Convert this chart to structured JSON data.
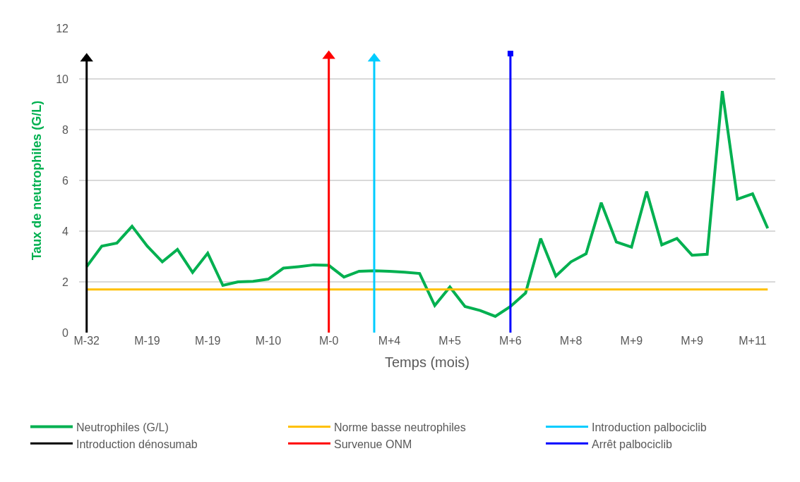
{
  "chart_data": {
    "type": "line",
    "xlabel": "Temps (mois)",
    "ylabel": "Taux de neutrophiles (G/L)",
    "categories": [
      "M-32",
      null,
      null,
      null,
      "M-19",
      null,
      null,
      null,
      "M-19",
      null,
      null,
      null,
      "M-10",
      null,
      null,
      null,
      "M-0",
      null,
      null,
      null,
      "M+4",
      null,
      null,
      null,
      "M+5",
      null,
      null,
      null,
      "M+6",
      null,
      null,
      null,
      "M+8",
      null,
      null,
      null,
      "M+9",
      null,
      null,
      null,
      "M+9",
      null,
      null,
      null,
      "M+11",
      null
    ],
    "series": [
      {
        "name": "Neutrophiles (G/L)",
        "color": "#00b050",
        "values": [
          2.6,
          3.41,
          3.53,
          4.19,
          3.41,
          2.79,
          3.28,
          2.37,
          3.13,
          1.86,
          2.0,
          2.02,
          2.11,
          2.54,
          2.6,
          2.67,
          2.65,
          2.19,
          2.42,
          2.44,
          2.42,
          2.38,
          2.33,
          1.07,
          1.8,
          1.03,
          0.87,
          0.64,
          1.03,
          1.56,
          3.71,
          2.23,
          2.79,
          3.11,
          5.12,
          3.57,
          3.37,
          5.56,
          3.46,
          3.71,
          3.05,
          3.09,
          9.52,
          5.26,
          5.47,
          4.11
        ]
      },
      {
        "name": "Norme basse neutrophiles",
        "color": "#ffc000",
        "values": [
          1.7,
          1.7,
          1.7,
          1.7,
          1.7,
          1.7,
          1.7,
          1.7,
          1.7,
          1.7,
          1.7,
          1.7,
          1.7,
          1.7,
          1.7,
          1.7,
          1.7,
          1.7,
          1.7,
          1.7,
          1.7,
          1.7,
          1.7,
          1.7,
          1.7,
          1.7,
          1.7,
          1.7,
          1.7,
          1.7,
          1.7,
          1.7,
          1.7,
          1.7,
          1.7,
          1.7,
          1.7,
          1.7,
          1.7,
          1.7,
          1.7,
          1.7,
          1.7,
          1.7,
          1.7,
          1.7
        ]
      },
      {
        "name": "Introduction palbociclib",
        "color": "#00ccff",
        "type": "lollipop",
        "marker": "triangle",
        "values": [
          null,
          null,
          null,
          null,
          null,
          null,
          null,
          null,
          null,
          null,
          null,
          null,
          null,
          null,
          null,
          null,
          null,
          null,
          null,
          10.8,
          null,
          null,
          null,
          null,
          null,
          null,
          null,
          null,
          null,
          null,
          null,
          null,
          null,
          null,
          null,
          null,
          null,
          null,
          null,
          null,
          null,
          null,
          null,
          null,
          null,
          null
        ]
      },
      {
        "name": "Introduction dénosumab",
        "color": "#000000",
        "type": "lollipop",
        "marker": "triangle",
        "values": [
          10.8,
          null,
          null,
          null,
          null,
          null,
          null,
          null,
          null,
          null,
          null,
          null,
          null,
          null,
          null,
          null,
          null,
          null,
          null,
          null,
          null,
          null,
          null,
          null,
          null,
          null,
          null,
          null,
          null,
          null,
          null,
          null,
          null,
          null,
          null,
          null,
          null,
          null,
          null,
          null,
          null,
          null,
          null,
          null,
          null,
          null
        ]
      },
      {
        "name": "Survenue ONM",
        "color": "#ff0000",
        "type": "lollipop",
        "marker": "triangle",
        "values": [
          null,
          null,
          null,
          null,
          null,
          null,
          null,
          null,
          null,
          null,
          null,
          null,
          null,
          null,
          null,
          null,
          10.9,
          null,
          null,
          null,
          null,
          null,
          null,
          null,
          null,
          null,
          null,
          null,
          null,
          null,
          null,
          null,
          null,
          null,
          null,
          null,
          null,
          null,
          null,
          null,
          null,
          null,
          null,
          null,
          null,
          null
        ]
      },
      {
        "name": "Arrêt palbociclib",
        "color": "#0000ff",
        "type": "lollipop",
        "marker": "square",
        "values": [
          null,
          null,
          null,
          null,
          null,
          null,
          null,
          null,
          null,
          null,
          null,
          null,
          null,
          null,
          null,
          null,
          null,
          null,
          null,
          null,
          null,
          null,
          null,
          null,
          null,
          null,
          null,
          null,
          11,
          null,
          null,
          null,
          null,
          null,
          null,
          null,
          null,
          null,
          null,
          null,
          null,
          null,
          null,
          null,
          null,
          null
        ]
      }
    ],
    "ylim": [
      0,
      12
    ],
    "yticks": [
      0,
      2,
      4,
      6,
      8,
      10,
      12
    ],
    "grid": "y",
    "legend": "bottom",
    "marker": "none",
    "line_style": "solid"
  }
}
